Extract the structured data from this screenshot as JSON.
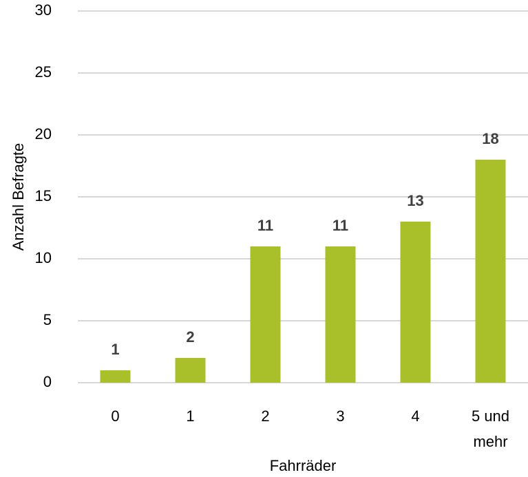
{
  "chart_data": {
    "type": "bar",
    "categories": [
      "0",
      "1",
      "2",
      "3",
      "4",
      "5 und mehr"
    ],
    "values": [
      1,
      2,
      11,
      11,
      13,
      18
    ],
    "color": "#a9c02a",
    "ylim": [
      0,
      30
    ],
    "yticks": [
      0,
      5,
      10,
      15,
      20,
      25,
      30
    ],
    "grid": true,
    "y_label": "Anzahl Befragte",
    "x_label": "Fahrräder"
  }
}
